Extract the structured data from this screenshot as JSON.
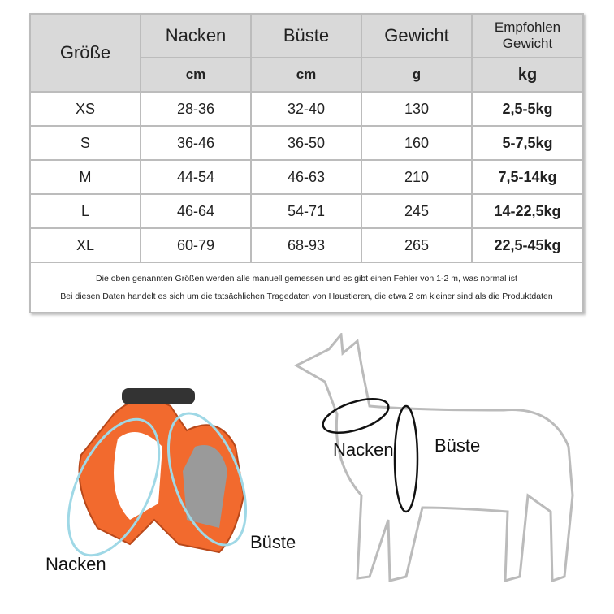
{
  "table": {
    "headers": [
      "Größe",
      "Nacken",
      "Büste",
      "Gewicht",
      "Empfohlen Gewicht"
    ],
    "units": [
      "cm",
      "cm",
      "g",
      "kg"
    ],
    "rows": [
      [
        "XS",
        "28-36",
        "32-40",
        "130",
        "2,5-5kg"
      ],
      [
        "S",
        "36-46",
        "36-50",
        "160",
        "5-7,5kg"
      ],
      [
        "M",
        "44-54",
        "46-63",
        "210",
        "7,5-14kg"
      ],
      [
        "L",
        "46-64",
        "54-71",
        "245",
        "14-22,5kg"
      ],
      [
        "XL",
        "60-79",
        "68-93",
        "265",
        "22,5-45kg"
      ]
    ],
    "notes": [
      "Die oben genannten Größen werden alle manuell gemessen und es gibt einen Fehler von 1-2 m, was normal ist",
      "Bei diesen Daten handelt es sich um die tatsächlichen Tragedaten von Haustieren, die etwa 2 cm kleiner sind als die Produktdaten"
    ]
  },
  "harness": {
    "neck_label": "Nacken",
    "chest_label": "Büste",
    "color": "#f26a2e"
  },
  "dog": {
    "neck_label": "Nacken",
    "chest_label": "Büste"
  }
}
